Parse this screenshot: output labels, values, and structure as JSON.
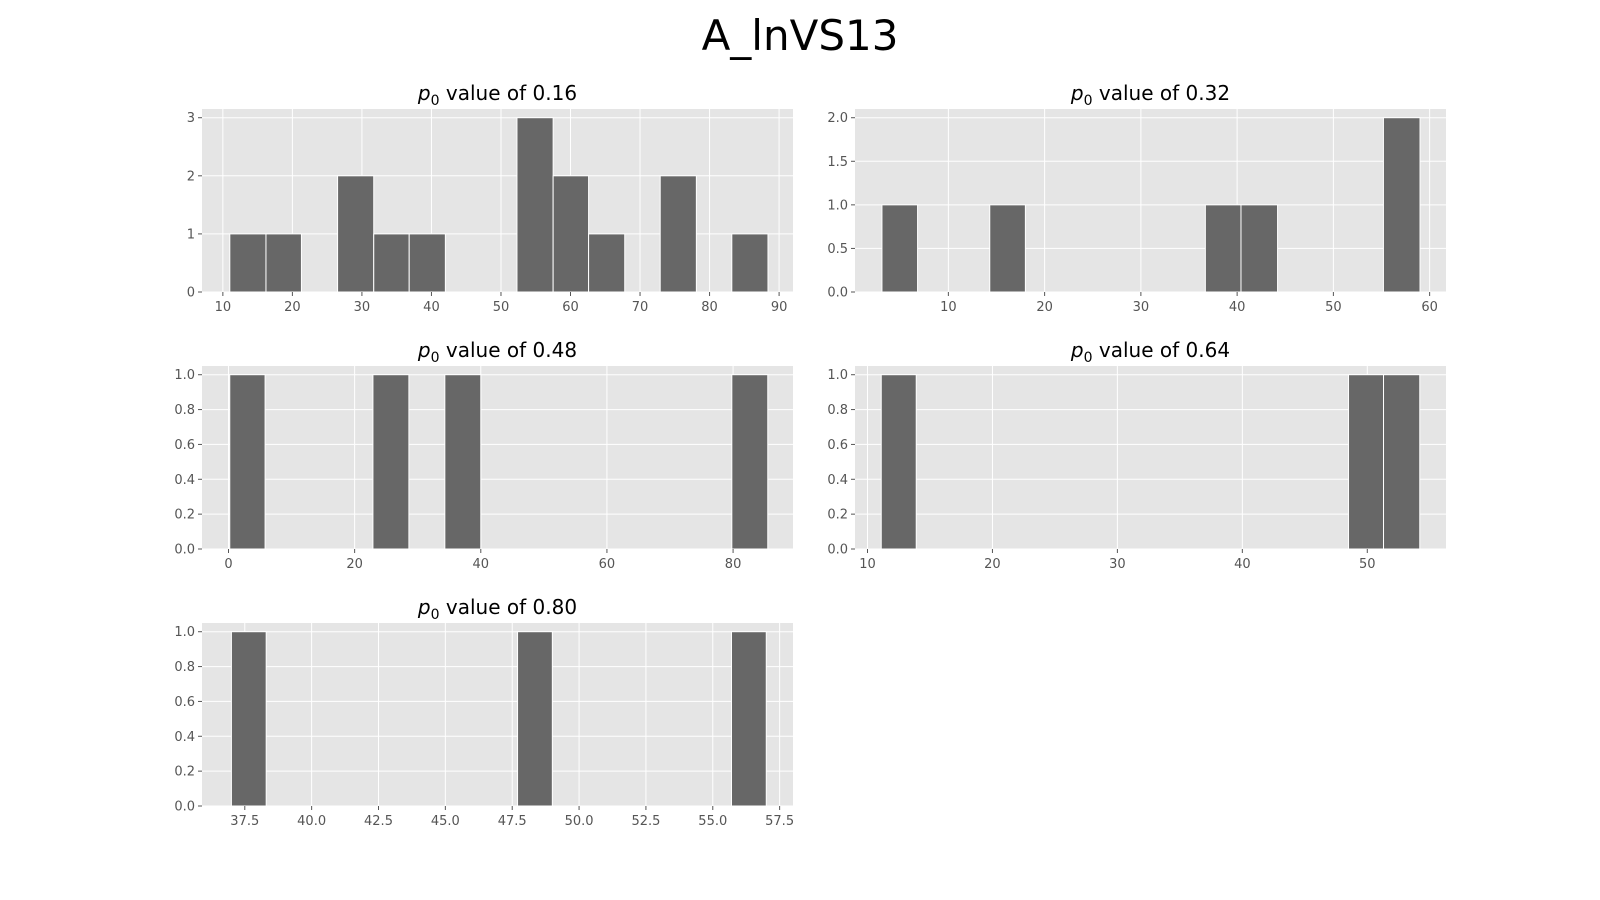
{
  "figure_title": "A_lnVS13",
  "chart_data": [
    {
      "type": "bar",
      "title_prefix": "p",
      "title_sub": "0",
      "title_suffix": " value of 0.16",
      "xlim": [
        7,
        92
      ],
      "ylim": [
        0,
        3.15
      ],
      "xticks": [
        10,
        20,
        30,
        40,
        50,
        60,
        70,
        80,
        90
      ],
      "xtick_labels": [
        "10",
        "20",
        "30",
        "40",
        "50",
        "60",
        "70",
        "80",
        "90"
      ],
      "yticks": [
        0,
        1,
        2,
        3
      ],
      "ytick_labels": [
        "0",
        "1",
        "2",
        "3"
      ],
      "grid": true,
      "bins": [
        {
          "x0": 11.0,
          "x1": 16.2,
          "count": 1
        },
        {
          "x0": 16.2,
          "x1": 21.3,
          "count": 1
        },
        {
          "x0": 26.5,
          "x1": 31.7,
          "count": 2
        },
        {
          "x0": 31.7,
          "x1": 36.8,
          "count": 1
        },
        {
          "x0": 36.8,
          "x1": 42.0,
          "count": 1
        },
        {
          "x0": 52.3,
          "x1": 57.5,
          "count": 3
        },
        {
          "x0": 57.5,
          "x1": 62.6,
          "count": 2
        },
        {
          "x0": 62.6,
          "x1": 67.8,
          "count": 1
        },
        {
          "x0": 72.9,
          "x1": 78.1,
          "count": 2
        },
        {
          "x0": 83.2,
          "x1": 88.4,
          "count": 1
        }
      ]
    },
    {
      "type": "bar",
      "title_prefix": "p",
      "title_sub": "0",
      "title_suffix": " value of 0.32",
      "xlim": [
        0.3,
        61.7
      ],
      "ylim": [
        0,
        2.1
      ],
      "xticks": [
        10,
        20,
        30,
        40,
        50,
        60
      ],
      "xtick_labels": [
        "10",
        "20",
        "30",
        "40",
        "50",
        "60"
      ],
      "yticks": [
        0,
        0.5,
        1.0,
        1.5,
        2.0
      ],
      "ytick_labels": [
        "0.0",
        "0.5",
        "1.0",
        "1.5",
        "2.0"
      ],
      "grid": true,
      "bins": [
        {
          "x0": 3.1,
          "x1": 6.8,
          "count": 1
        },
        {
          "x0": 14.3,
          "x1": 18.0,
          "count": 1
        },
        {
          "x0": 36.7,
          "x1": 40.4,
          "count": 1
        },
        {
          "x0": 40.4,
          "x1": 44.2,
          "count": 1
        },
        {
          "x0": 55.2,
          "x1": 59.0,
          "count": 2
        }
      ]
    },
    {
      "type": "bar",
      "title_prefix": "p",
      "title_sub": "0",
      "title_suffix": " value of 0.48",
      "xlim": [
        -4.2,
        89.5
      ],
      "ylim": [
        0,
        1.05
      ],
      "xticks": [
        0,
        20,
        40,
        60,
        80
      ],
      "xtick_labels": [
        "0",
        "20",
        "40",
        "60",
        "80"
      ],
      "yticks": [
        0,
        0.2,
        0.4,
        0.6,
        0.8,
        1.0
      ],
      "ytick_labels": [
        "0.0",
        "0.2",
        "0.4",
        "0.6",
        "0.8",
        "1.0"
      ],
      "grid": true,
      "bins": [
        {
          "x0": 0.2,
          "x1": 5.8,
          "count": 1
        },
        {
          "x0": 22.9,
          "x1": 28.6,
          "count": 1
        },
        {
          "x0": 34.3,
          "x1": 40.0,
          "count": 1
        },
        {
          "x0": 79.8,
          "x1": 85.5,
          "count": 1
        }
      ]
    },
    {
      "type": "bar",
      "title_prefix": "p",
      "title_sub": "0",
      "title_suffix": " value of 0.64",
      "xlim": [
        9.0,
        56.3
      ],
      "ylim": [
        0,
        1.05
      ],
      "xticks": [
        10,
        20,
        30,
        40,
        50
      ],
      "xtick_labels": [
        "10",
        "20",
        "30",
        "40",
        "50"
      ],
      "yticks": [
        0,
        0.2,
        0.4,
        0.6,
        0.8,
        1.0
      ],
      "ytick_labels": [
        "0.0",
        "0.2",
        "0.4",
        "0.6",
        "0.8",
        "1.0"
      ],
      "grid": true,
      "bins": [
        {
          "x0": 11.1,
          "x1": 13.9,
          "count": 1
        },
        {
          "x0": 48.5,
          "x1": 51.3,
          "count": 1
        },
        {
          "x0": 51.3,
          "x1": 54.2,
          "count": 1
        }
      ]
    },
    {
      "type": "bar",
      "title_prefix": "p",
      "title_sub": "0",
      "title_suffix": " value of 0.80",
      "xlim": [
        35.9,
        58.0
      ],
      "ylim": [
        0,
        1.05
      ],
      "xticks": [
        37.5,
        40.0,
        42.5,
        45.0,
        47.5,
        50.0,
        52.5,
        55.0,
        57.5
      ],
      "xtick_labels": [
        "37.5",
        "40.0",
        "42.5",
        "45.0",
        "47.5",
        "50.0",
        "52.5",
        "55.0",
        "57.5"
      ],
      "yticks": [
        0,
        0.2,
        0.4,
        0.6,
        0.8,
        1.0
      ],
      "ytick_labels": [
        "0.0",
        "0.2",
        "0.4",
        "0.6",
        "0.8",
        "1.0"
      ],
      "grid": true,
      "bins": [
        {
          "x0": 37.0,
          "x1": 38.3,
          "count": 1
        },
        {
          "x0": 47.7,
          "x1": 49.0,
          "count": 1
        },
        {
          "x0": 55.7,
          "x1": 57.0,
          "count": 1
        }
      ]
    }
  ]
}
